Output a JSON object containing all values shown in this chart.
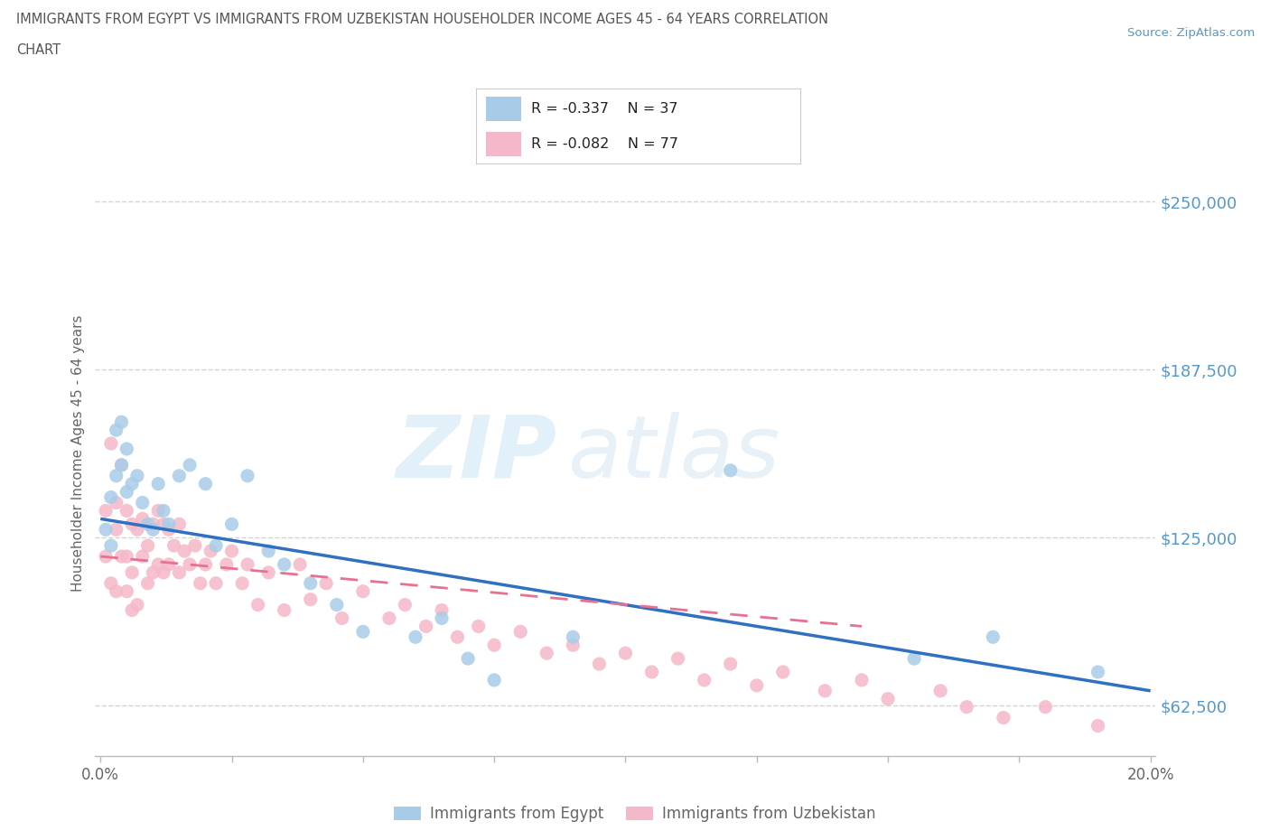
{
  "title_line1": "IMMIGRANTS FROM EGYPT VS IMMIGRANTS FROM UZBEKISTAN HOUSEHOLDER INCOME AGES 45 - 64 YEARS CORRELATION",
  "title_line2": "CHART",
  "source": "Source: ZipAtlas.com",
  "ylabel": "Householder Income Ages 45 - 64 years",
  "xlim": [
    -0.001,
    0.201
  ],
  "ylim": [
    43750,
    268750
  ],
  "yticks": [
    62500,
    125000,
    187500,
    250000
  ],
  "ytick_labels": [
    "$62,500",
    "$125,000",
    "$187,500",
    "$250,000"
  ],
  "xtick_positions": [
    0.0,
    0.025,
    0.05,
    0.075,
    0.1,
    0.125,
    0.15,
    0.175,
    0.2
  ],
  "xtick_labels": [
    "0.0%",
    "",
    "",
    "",
    "",
    "",
    "",
    "",
    "20.0%"
  ],
  "egypt_color": "#a8cce8",
  "uzbekistan_color": "#f5b8c8",
  "egypt_line_color": "#3070c0",
  "uzbekistan_line_color": "#e87090",
  "egypt_R": -0.337,
  "egypt_N": 37,
  "uzbekistan_R": -0.082,
  "uzbekistan_N": 77,
  "watermark_zip": "ZIP",
  "watermark_atlas": "atlas",
  "background_color": "#ffffff",
  "grid_color": "#d0d0d0",
  "tick_label_color": "#666666",
  "ytick_color": "#5599cc",
  "title_color": "#555555",
  "source_color": "#5599cc",
  "egypt_x": [
    0.001,
    0.002,
    0.002,
    0.003,
    0.003,
    0.004,
    0.004,
    0.005,
    0.005,
    0.006,
    0.007,
    0.008,
    0.009,
    0.01,
    0.011,
    0.012,
    0.013,
    0.015,
    0.017,
    0.02,
    0.022,
    0.025,
    0.028,
    0.032,
    0.035,
    0.04,
    0.045,
    0.05,
    0.06,
    0.065,
    0.07,
    0.075,
    0.09,
    0.12,
    0.155,
    0.17,
    0.19
  ],
  "egypt_y": [
    128000,
    122000,
    140000,
    148000,
    165000,
    152000,
    168000,
    142000,
    158000,
    145000,
    148000,
    138000,
    130000,
    128000,
    145000,
    135000,
    130000,
    148000,
    152000,
    145000,
    122000,
    130000,
    148000,
    120000,
    115000,
    108000,
    100000,
    90000,
    88000,
    95000,
    80000,
    72000,
    88000,
    150000,
    80000,
    88000,
    75000
  ],
  "uzbekistan_x": [
    0.001,
    0.001,
    0.002,
    0.002,
    0.003,
    0.003,
    0.003,
    0.004,
    0.004,
    0.005,
    0.005,
    0.005,
    0.006,
    0.006,
    0.006,
    0.007,
    0.007,
    0.008,
    0.008,
    0.009,
    0.009,
    0.01,
    0.01,
    0.011,
    0.011,
    0.012,
    0.012,
    0.013,
    0.013,
    0.014,
    0.015,
    0.015,
    0.016,
    0.017,
    0.018,
    0.019,
    0.02,
    0.021,
    0.022,
    0.024,
    0.025,
    0.027,
    0.028,
    0.03,
    0.032,
    0.035,
    0.038,
    0.04,
    0.043,
    0.046,
    0.05,
    0.055,
    0.058,
    0.062,
    0.065,
    0.068,
    0.072,
    0.075,
    0.08,
    0.085,
    0.09,
    0.095,
    0.1,
    0.105,
    0.11,
    0.115,
    0.12,
    0.125,
    0.13,
    0.138,
    0.145,
    0.15,
    0.16,
    0.165,
    0.172,
    0.18,
    0.19
  ],
  "uzbekistan_y": [
    118000,
    135000,
    160000,
    108000,
    138000,
    128000,
    105000,
    152000,
    118000,
    135000,
    118000,
    105000,
    130000,
    112000,
    98000,
    128000,
    100000,
    132000,
    118000,
    122000,
    108000,
    130000,
    112000,
    135000,
    115000,
    130000,
    112000,
    128000,
    115000,
    122000,
    130000,
    112000,
    120000,
    115000,
    122000,
    108000,
    115000,
    120000,
    108000,
    115000,
    120000,
    108000,
    115000,
    100000,
    112000,
    98000,
    115000,
    102000,
    108000,
    95000,
    105000,
    95000,
    100000,
    92000,
    98000,
    88000,
    92000,
    85000,
    90000,
    82000,
    85000,
    78000,
    82000,
    75000,
    80000,
    72000,
    78000,
    70000,
    75000,
    68000,
    72000,
    65000,
    68000,
    62000,
    58000,
    62000,
    55000
  ],
  "egypt_trend_x": [
    0.0,
    0.2
  ],
  "egypt_trend_y": [
    132000,
    68000
  ],
  "uzbekistan_trend_x": [
    0.0,
    0.145
  ],
  "uzbekistan_trend_y": [
    118000,
    92000
  ]
}
